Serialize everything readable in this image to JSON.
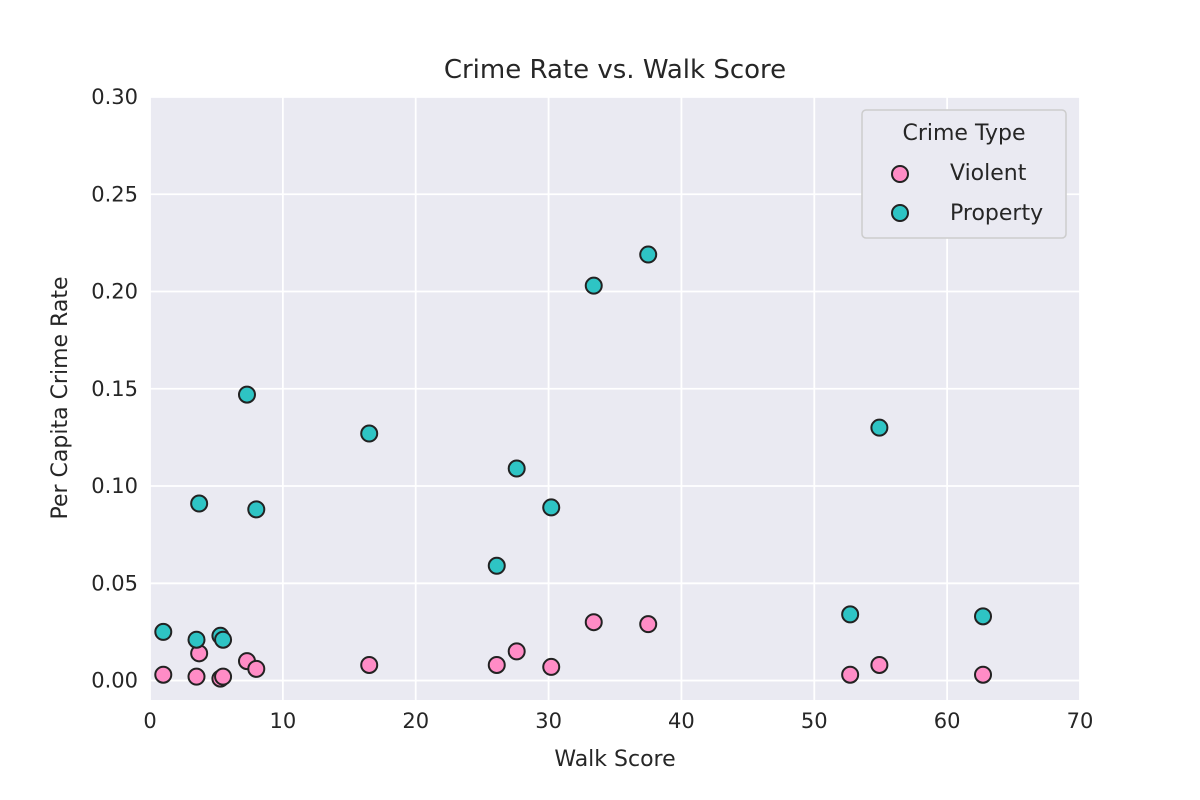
{
  "chart_data": {
    "type": "scatter",
    "title": "Crime Rate vs. Walk Score",
    "xlabel": "Walk Score",
    "ylabel": "Per Capita Crime Rate",
    "xlim": [
      0,
      70
    ],
    "ylim": [
      -0.01,
      0.3
    ],
    "xticks": [
      0,
      10,
      20,
      30,
      40,
      50,
      60,
      70
    ],
    "xtick_labels": [
      "0",
      "10",
      "20",
      "30",
      "40",
      "50",
      "60",
      "70"
    ],
    "yticks": [
      0.0,
      0.05,
      0.1,
      0.15,
      0.2,
      0.25,
      0.3
    ],
    "ytick_labels": [
      "0.00",
      "0.05",
      "0.10",
      "0.15",
      "0.20",
      "0.25",
      "0.30"
    ],
    "grid": true,
    "background": "#eaeaf2",
    "legend": {
      "title": "Crime Type",
      "placement": "top-right"
    },
    "series": [
      {
        "name": "Violent",
        "color": "#ff8cc6",
        "points": [
          {
            "x": 1.0,
            "y": 0.003
          },
          {
            "x": 3.5,
            "y": 0.002
          },
          {
            "x": 3.7,
            "y": 0.014
          },
          {
            "x": 5.3,
            "y": 0.001
          },
          {
            "x": 5.5,
            "y": 0.002
          },
          {
            "x": 7.3,
            "y": 0.01
          },
          {
            "x": 8.0,
            "y": 0.006
          },
          {
            "x": 16.5,
            "y": 0.008
          },
          {
            "x": 26.1,
            "y": 0.008
          },
          {
            "x": 27.6,
            "y": 0.015
          },
          {
            "x": 30.2,
            "y": 0.007
          },
          {
            "x": 33.4,
            "y": 0.03
          },
          {
            "x": 37.5,
            "y": 0.029
          },
          {
            "x": 52.7,
            "y": 0.003
          },
          {
            "x": 54.9,
            "y": 0.008
          },
          {
            "x": 62.7,
            "y": 0.003
          }
        ]
      },
      {
        "name": "Property",
        "color": "#2ec4c4",
        "points": [
          {
            "x": 1.0,
            "y": 0.025
          },
          {
            "x": 3.5,
            "y": 0.021
          },
          {
            "x": 3.7,
            "y": 0.091
          },
          {
            "x": 5.3,
            "y": 0.023
          },
          {
            "x": 5.5,
            "y": 0.021
          },
          {
            "x": 7.3,
            "y": 0.147
          },
          {
            "x": 8.0,
            "y": 0.088
          },
          {
            "x": 16.5,
            "y": 0.127
          },
          {
            "x": 26.1,
            "y": 0.059
          },
          {
            "x": 27.6,
            "y": 0.109
          },
          {
            "x": 30.2,
            "y": 0.089
          },
          {
            "x": 33.4,
            "y": 0.203
          },
          {
            "x": 37.5,
            "y": 0.219
          },
          {
            "x": 52.7,
            "y": 0.034
          },
          {
            "x": 54.9,
            "y": 0.13
          },
          {
            "x": 62.7,
            "y": 0.033
          }
        ]
      }
    ]
  }
}
